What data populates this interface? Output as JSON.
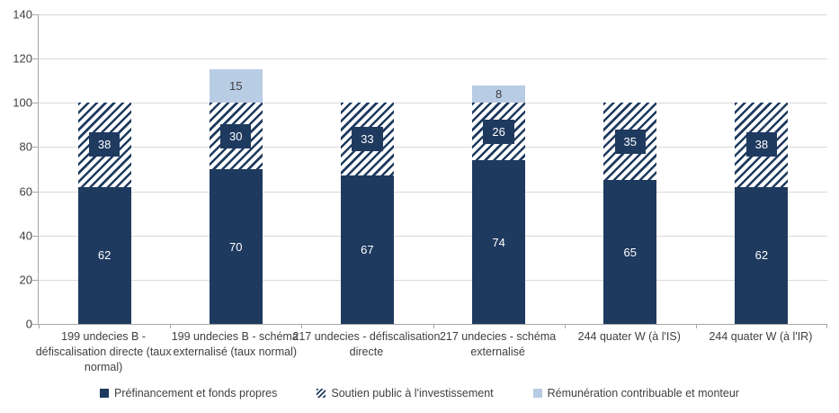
{
  "chart_data": {
    "type": "bar",
    "stacked": true,
    "title": "",
    "xlabel": "",
    "ylabel": "",
    "categories": [
      "199 undecies B - défiscalisation directe (taux normal)",
      "199 undecies B - schéma externalisé (taux normal)",
      "217 undecies - défiscalisation directe",
      "217 undecies - schéma externalisé",
      "244 quater W (à l'IS)",
      "244 quater W (à l'IR)"
    ],
    "series": [
      {
        "name": "Préfinancement et fonds propres",
        "style": "solid",
        "color": "#1F3A5F",
        "values": [
          62,
          70,
          67,
          74,
          65,
          62
        ]
      },
      {
        "name": "Soutien public à l'investissement",
        "style": "hatched",
        "color": "#1F3A5F",
        "values": [
          38,
          30,
          33,
          26,
          35,
          38
        ]
      },
      {
        "name": "Rémunération contribuable et monteur",
        "style": "light",
        "color": "#B8CCE4",
        "values": [
          0,
          15,
          0,
          8,
          0,
          0
        ]
      }
    ],
    "ylim": [
      0,
      140
    ],
    "ytick_step": 20,
    "yticks": [
      0,
      20,
      40,
      60,
      80,
      100,
      120,
      140
    ],
    "grid": true,
    "legend_position": "bottom"
  },
  "colors": {
    "bar_navy": "#1F3A5F",
    "bar_light_blue": "#B8CCE4",
    "gridline": "#D9D9D9",
    "axis_line": "#A6A6A6",
    "text": "#404040",
    "label_on_dark": "#FFFFFF",
    "background": "#FFFFFF"
  }
}
